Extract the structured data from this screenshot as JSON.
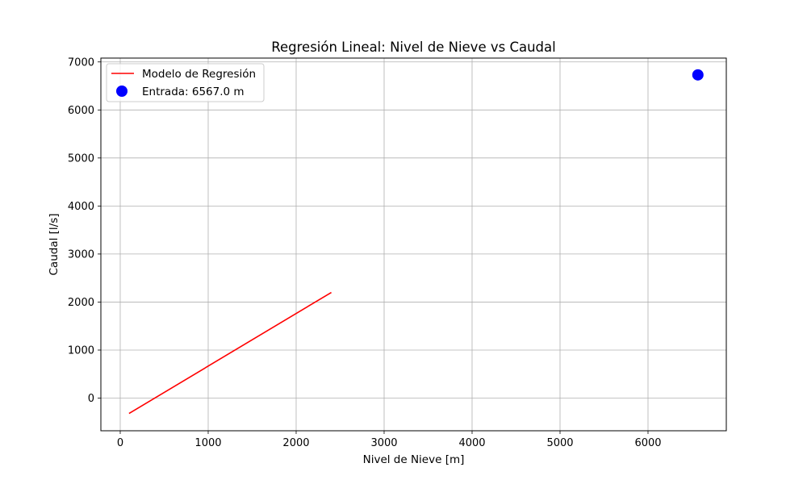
{
  "chart_data": {
    "type": "line",
    "title": "Regresión Lineal: Nivel de Nieve vs Caudal",
    "xlabel": "Nivel de Nieve [m]",
    "ylabel": "Caudal [l/s]",
    "xlim": [
      -220,
      6890
    ],
    "ylim": [
      -680,
      7080
    ],
    "xticks": [
      0,
      1000,
      2000,
      3000,
      4000,
      5000,
      6000
    ],
    "yticks": [
      0,
      1000,
      2000,
      3000,
      4000,
      5000,
      6000,
      7000
    ],
    "grid": true,
    "legend_position": "top-left",
    "series": [
      {
        "name": "Modelo de Regresión",
        "kind": "line",
        "color": "#ff0000",
        "x": [
          100,
          2400
        ],
        "y": [
          -320,
          2200
        ]
      },
      {
        "name": "Entrada: 6567.0 m",
        "kind": "scatter",
        "color": "#0000ff",
        "x": [
          6567.0
        ],
        "y": [
          6730
        ]
      }
    ]
  }
}
